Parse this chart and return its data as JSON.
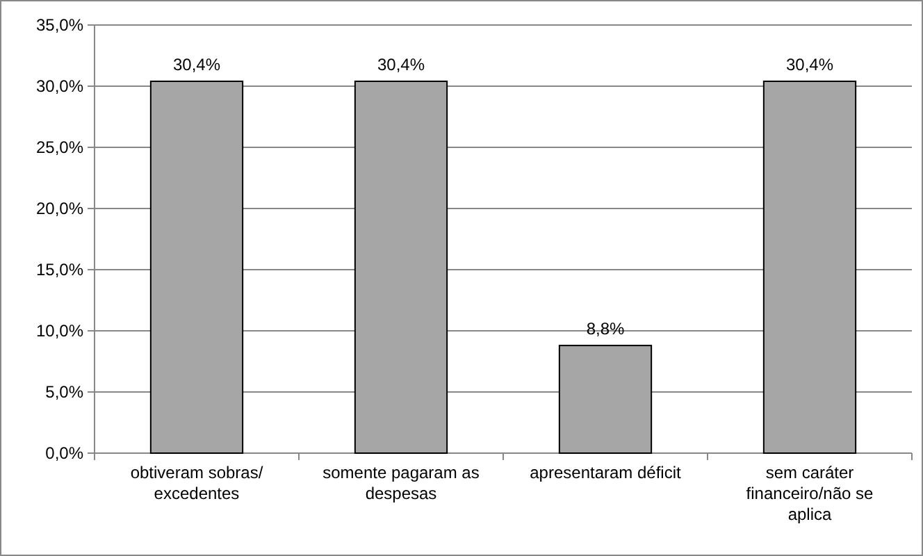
{
  "chart_data": {
    "type": "bar",
    "categories": [
      "obtiveram sobras/ excedentes",
      "somente pagaram as despesas",
      "apresentaram déficit",
      "sem caráter financeiro/não se aplica"
    ],
    "values": [
      30.4,
      30.4,
      8.8,
      30.4
    ],
    "color": "#a6a6a6",
    "value_labels": [
      "30,4%",
      "30,4%",
      "8,8%",
      "30,4%"
    ],
    "ylim": [
      0,
      35
    ],
    "yticks": [
      {
        "value": 0,
        "label": "0,0%"
      },
      {
        "value": 5,
        "label": "5,0%"
      },
      {
        "value": 10,
        "label": "10,0%"
      },
      {
        "value": 15,
        "label": "15,0%"
      },
      {
        "value": 20,
        "label": "20,0%"
      },
      {
        "value": 25,
        "label": "25,0%"
      },
      {
        "value": 30,
        "label": "30,0%"
      },
      {
        "value": 35,
        "label": "35,0%"
      }
    ],
    "grid": true
  }
}
